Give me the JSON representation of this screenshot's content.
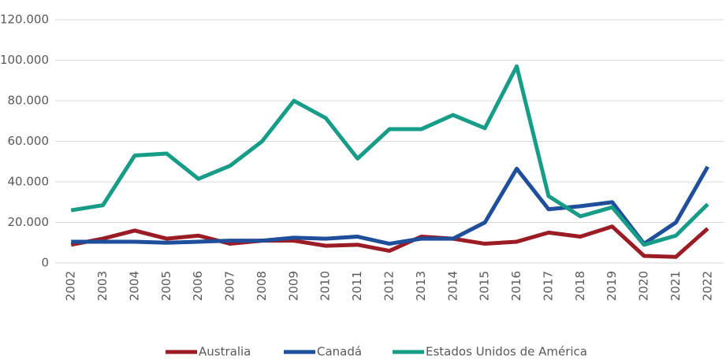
{
  "chart_data": {
    "type": "line",
    "categories": [
      "2002",
      "2003",
      "2004",
      "2005",
      "2006",
      "2007",
      "2008",
      "2009",
      "2010",
      "2011",
      "2012",
      "2013",
      "2014",
      "2015",
      "2016",
      "2017",
      "2018",
      "2019",
      "2020",
      "2021",
      "2022"
    ],
    "series": [
      {
        "name": "Australia",
        "color": "#9b1c24",
        "values": [
          9000,
          12000,
          16000,
          12000,
          13500,
          9500,
          11000,
          11000,
          8500,
          9000,
          6000,
          13000,
          12000,
          9500,
          10500,
          15000,
          13000,
          18000,
          3500,
          3000,
          17000
        ]
      },
      {
        "name": "Canadá",
        "color": "#1f4e9a",
        "values": [
          10500,
          10500,
          10500,
          10000,
          10500,
          11000,
          11000,
          12500,
          12000,
          13000,
          9500,
          12000,
          12000,
          20000,
          46500,
          26500,
          28000,
          30000,
          9500,
          20000,
          47500
        ]
      },
      {
        "name": "Estados Unidos de América",
        "color": "#179c87",
        "values": [
          26000,
          28500,
          53000,
          54000,
          41500,
          48000,
          60000,
          80000,
          71500,
          51500,
          66000,
          66000,
          73000,
          66500,
          97000,
          33000,
          23000,
          27500,
          9000,
          13500,
          29000
        ]
      }
    ],
    "ylim": [
      0,
      120000
    ],
    "yticks": [
      0,
      {
        "value": 20000,
        "label": "20.000"
      },
      {
        "value": 40000,
        "label": "40.000"
      },
      {
        "value": 60000,
        "label": "60.000"
      },
      {
        "value": 80000,
        "label": "80.000"
      },
      {
        "value": 100000,
        "label": "100.000"
      },
      {
        "value": 120000,
        "label": "120.000"
      }
    ],
    "grid": true,
    "legend": "bottom"
  }
}
